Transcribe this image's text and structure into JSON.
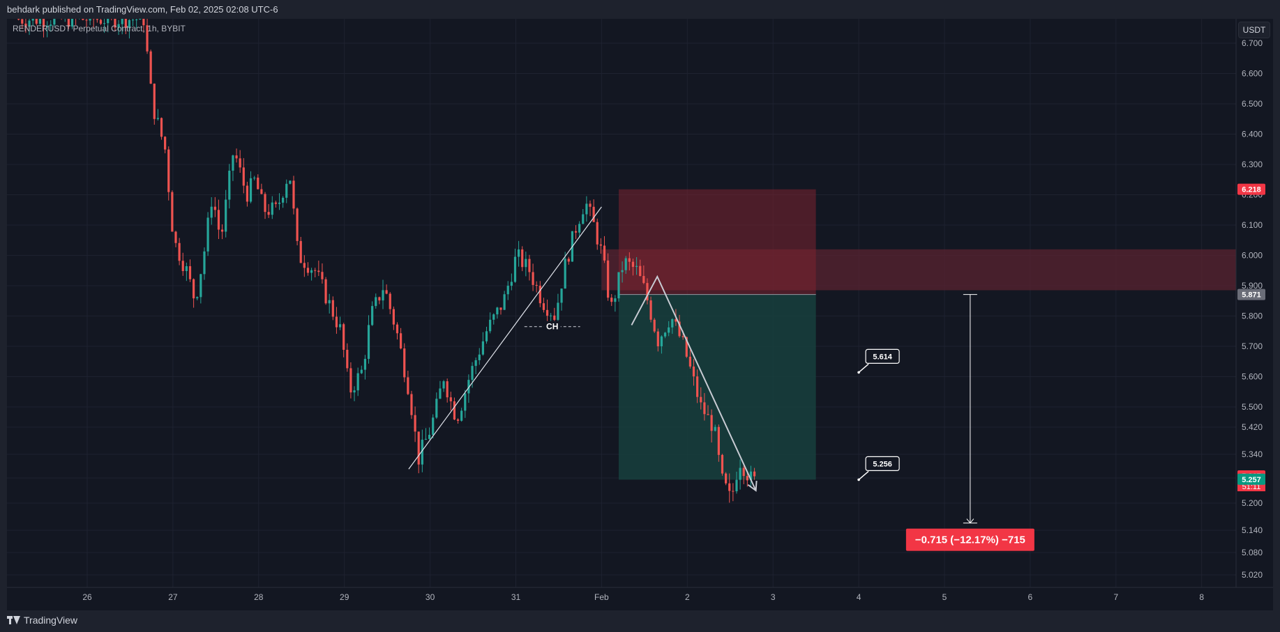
{
  "header": {
    "published": "behdark published on TradingView.com, Feb 02, 2025 02:08 UTC-6"
  },
  "symbol_line": "RENDERUSDT Perpetual Contract, 1h, BYBIT",
  "currency_button": "USDT",
  "footer": {
    "brand": "TradingView",
    "logo_icon": "tradingview-logo-icon"
  },
  "colors": {
    "background": "#131722",
    "grid": "#1e2230",
    "up": "#26a69a",
    "down": "#ef5350",
    "stop_zone": "#7b2230",
    "target_zone": "#17403d",
    "supply_zone": "#5a2330",
    "text": "#b2b5be"
  },
  "chart_data": {
    "type": "candlestick",
    "title": "RENDERUSDT Perpetual Contract, 1h, BYBIT",
    "xlabel": "",
    "ylabel": "",
    "x_ticks": [
      {
        "label": "26",
        "day": 26
      },
      {
        "label": "27",
        "day": 27
      },
      {
        "label": "28",
        "day": 28
      },
      {
        "label": "29",
        "day": 29
      },
      {
        "label": "30",
        "day": 30
      },
      {
        "label": "31",
        "day": 31
      },
      {
        "label": "Feb",
        "day": 32
      },
      {
        "label": "2",
        "day": 33
      },
      {
        "label": "3",
        "day": 34
      },
      {
        "label": "4",
        "day": 35
      },
      {
        "label": "5",
        "day": 36
      },
      {
        "label": "6",
        "day": 37
      },
      {
        "label": "7",
        "day": 38
      },
      {
        "label": "8",
        "day": 39
      }
    ],
    "y_ticks": [
      "6.700",
      "6.600",
      "6.500",
      "6.400",
      "6.300",
      "6.200",
      "6.100",
      "6.000",
      "5.900",
      "5.800",
      "5.700",
      "5.600",
      "5.500",
      "5.420",
      "5.340",
      "5.260",
      "5.200",
      "5.140",
      "5.080",
      "5.020"
    ],
    "y_tick_values": [
      6.7,
      6.6,
      6.5,
      6.4,
      6.3,
      6.2,
      6.1,
      6.0,
      5.9,
      5.8,
      5.7,
      5.6,
      5.5,
      5.42,
      5.34,
      5.26,
      5.2,
      5.14,
      5.08,
      5.02
    ],
    "price_path": [
      [
        25.2,
        6.78
      ],
      [
        26.7,
        6.78
      ],
      [
        26.8,
        6.5
      ],
      [
        26.95,
        6.35
      ],
      [
        27.05,
        6.05
      ],
      [
        27.2,
        5.95
      ],
      [
        27.3,
        5.85
      ],
      [
        27.4,
        6.0
      ],
      [
        27.5,
        6.2
      ],
      [
        27.6,
        6.05
      ],
      [
        27.75,
        6.35
      ],
      [
        27.9,
        6.2
      ],
      [
        28.0,
        6.25
      ],
      [
        28.1,
        6.15
      ],
      [
        28.25,
        6.15
      ],
      [
        28.4,
        6.28
      ],
      [
        28.5,
        6.0
      ],
      [
        28.7,
        5.95
      ],
      [
        28.85,
        5.85
      ],
      [
        29.0,
        5.75
      ],
      [
        29.1,
        5.55
      ],
      [
        29.25,
        5.62
      ],
      [
        29.35,
        5.8
      ],
      [
        29.5,
        5.9
      ],
      [
        29.65,
        5.75
      ],
      [
        29.8,
        5.55
      ],
      [
        29.9,
        5.32
      ],
      [
        30.05,
        5.42
      ],
      [
        30.2,
        5.6
      ],
      [
        30.35,
        5.45
      ],
      [
        30.5,
        5.6
      ],
      [
        30.7,
        5.75
      ],
      [
        30.9,
        5.85
      ],
      [
        31.05,
        6.0
      ],
      [
        31.2,
        5.95
      ],
      [
        31.35,
        5.85
      ],
      [
        31.5,
        5.8
      ],
      [
        31.6,
        5.95
      ],
      [
        31.75,
        6.1
      ],
      [
        31.85,
        6.18
      ],
      [
        31.95,
        6.1
      ],
      [
        32.05,
        6.0
      ],
      [
        32.15,
        5.82
      ],
      [
        32.3,
        5.98
      ],
      [
        32.45,
        5.95
      ],
      [
        32.55,
        5.88
      ],
      [
        32.7,
        5.72
      ],
      [
        32.85,
        5.8
      ],
      [
        33.0,
        5.7
      ],
      [
        33.1,
        5.6
      ],
      [
        33.2,
        5.5
      ],
      [
        33.35,
        5.42
      ],
      [
        33.45,
        5.25
      ],
      [
        33.55,
        5.2
      ],
      [
        33.65,
        5.32
      ],
      [
        33.8,
        5.25
      ]
    ],
    "last_price": "5.267",
    "last_price_value": 5.267,
    "countdown": "51:11",
    "bid_price": "5.257",
    "bid_price_value": 5.257,
    "position": {
      "side": "short",
      "entry": 5.871,
      "entry_label": "5.871",
      "stop": 6.218,
      "stop_label": "6.218",
      "target": 5.256,
      "start_day": 32.2,
      "end_day": 34.5
    },
    "supply_zone": {
      "top": 6.02,
      "bottom": 5.885,
      "start_day": 32.0
    },
    "annotations": {
      "change_of_character": {
        "label": "CH",
        "price": 5.765,
        "start_day": 31.1,
        "end_day": 31.75
      },
      "trendline": {
        "from": [
          29.75,
          5.29
        ],
        "to": [
          32.0,
          6.16
        ]
      },
      "projection": [
        [
          32.35,
          5.77
        ],
        [
          32.65,
          5.93
        ],
        [
          33.8,
          5.23
        ]
      ],
      "callouts": [
        {
          "text": "5.614",
          "day": 35.0,
          "price": 5.614
        },
        {
          "text": "5.256",
          "day": 35.0,
          "price": 5.256
        }
      ],
      "measure": {
        "day": 36.3,
        "from": 5.871,
        "to": 5.156,
        "label": "−0.715 (−12.17%) −715"
      }
    }
  }
}
